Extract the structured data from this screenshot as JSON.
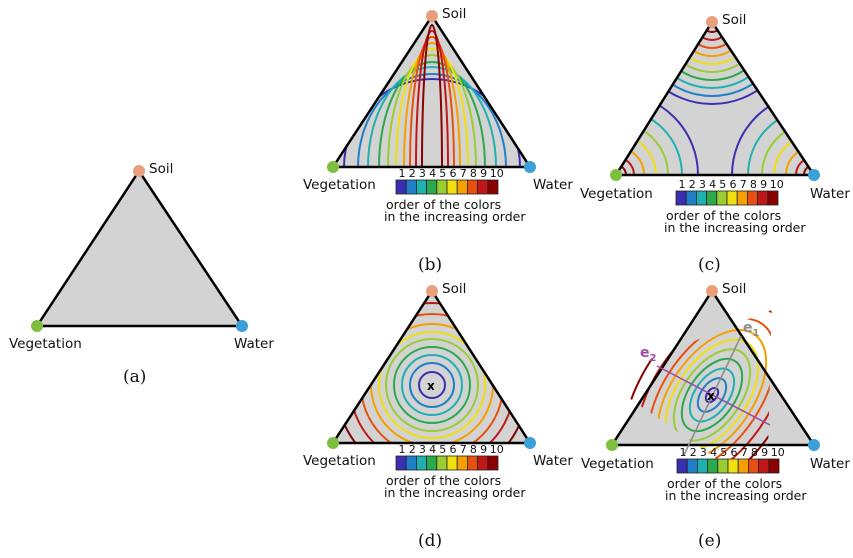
{
  "vertices": {
    "top": "Soil",
    "left": "Vegetation",
    "right": "Water"
  },
  "legend": {
    "numbers": [
      "1",
      "2",
      "3",
      "4",
      "5",
      "6",
      "7",
      "8",
      "9",
      "10"
    ],
    "line1": "order of the colors",
    "line2": "in the increasing order",
    "colors": [
      "#3a2fb0",
      "#1f7fc8",
      "#1fb0b0",
      "#2aaa4a",
      "#9acd32",
      "#f0e010",
      "#f5a000",
      "#e85010",
      "#c01818",
      "#8b0000"
    ]
  },
  "colors": {
    "soil": "#e9a07a",
    "vegetation": "#7fbf3f",
    "water": "#3b9fd8",
    "fill": "#d3d3d3",
    "e1": "#8c8c8c",
    "e2": "#a04aa6"
  },
  "panels": [
    {
      "caption": "(a)"
    },
    {
      "caption": "(b)"
    },
    {
      "caption": "(c)"
    },
    {
      "caption": "(d)",
      "center_mark": "x"
    },
    {
      "caption": "(e)",
      "center_mark": "x",
      "axis1": "e",
      "axis1_sub": "1",
      "axis2": "e",
      "axis2_sub": "2"
    }
  ]
}
